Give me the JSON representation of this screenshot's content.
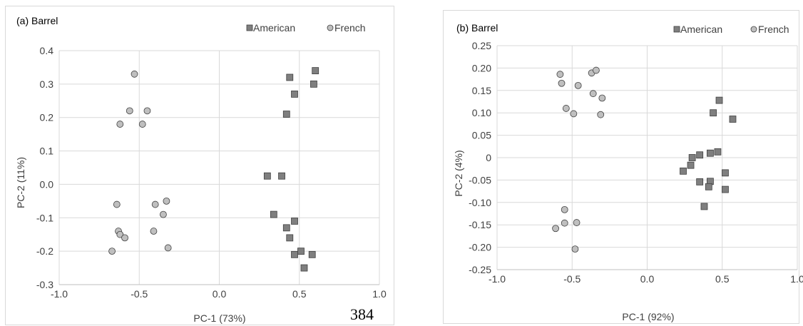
{
  "page_number": "384",
  "chart_data": [
    {
      "type": "scatter",
      "title": "(a) Barrel",
      "xlabel": "PC-1 (73%)",
      "ylabel": "PC-2 (11%)",
      "xlim": [
        -1.0,
        1.0
      ],
      "ylim": [
        -0.3,
        0.4
      ],
      "x_ticks": [
        "-1.0",
        "-0.5",
        "0.0",
        "0.5",
        "1.0"
      ],
      "y_ticks": [
        "0.4",
        "0.3",
        "0.2",
        "0.1",
        "0.0",
        "-0.1",
        "-0.2",
        "-0.3"
      ],
      "grid": true,
      "legend_position": "top-right",
      "series": [
        {
          "name": "American",
          "marker": "square",
          "color": "#7f7f7f",
          "points": [
            [
              0.44,
              0.32
            ],
            [
              0.6,
              0.34
            ],
            [
              0.59,
              0.3
            ],
            [
              0.47,
              0.27
            ],
            [
              0.42,
              0.21
            ],
            [
              0.3,
              0.025
            ],
            [
              0.39,
              0.025
            ],
            [
              0.34,
              -0.09
            ],
            [
              0.47,
              -0.11
            ],
            [
              0.42,
              -0.13
            ],
            [
              0.44,
              -0.16
            ],
            [
              0.51,
              -0.2
            ],
            [
              0.58,
              -0.21
            ],
            [
              0.47,
              -0.21
            ],
            [
              0.53,
              -0.25
            ]
          ]
        },
        {
          "name": "French",
          "marker": "circle",
          "color": "#bfbfbf",
          "points": [
            [
              -0.53,
              0.33
            ],
            [
              -0.56,
              0.22
            ],
            [
              -0.45,
              0.22
            ],
            [
              -0.48,
              0.18
            ],
            [
              -0.62,
              0.18
            ],
            [
              -0.64,
              -0.06
            ],
            [
              -0.4,
              -0.06
            ],
            [
              -0.33,
              -0.05
            ],
            [
              -0.35,
              -0.09
            ],
            [
              -0.41,
              -0.14
            ],
            [
              -0.63,
              -0.14
            ],
            [
              -0.62,
              -0.15
            ],
            [
              -0.59,
              -0.16
            ],
            [
              -0.67,
              -0.2
            ],
            [
              -0.32,
              -0.19
            ]
          ]
        }
      ]
    },
    {
      "type": "scatter",
      "title": "(b) Barrel",
      "xlabel": "PC-1 (92%)",
      "ylabel": "PC-2 (4%)",
      "xlim": [
        -1.0,
        1.0
      ],
      "ylim": [
        -0.25,
        0.25
      ],
      "x_ticks": [
        "-1.0",
        "-0.5",
        "0.0",
        "0.5",
        "1.0"
      ],
      "y_ticks": [
        "0.25",
        "0.20",
        "0.15",
        "0.10",
        "0.05",
        "0",
        "-0.05",
        "-0.10",
        "-0.15",
        "-0.20",
        "-0.25"
      ],
      "grid": true,
      "legend_position": "top-right",
      "series": [
        {
          "name": "American",
          "marker": "square",
          "color": "#7f7f7f",
          "points": [
            [
              0.48,
              0.128
            ],
            [
              0.57,
              0.086
            ],
            [
              0.44,
              0.1
            ],
            [
              0.47,
              0.013
            ],
            [
              0.42,
              0.01
            ],
            [
              0.35,
              0.006
            ],
            [
              0.3,
              0.0
            ],
            [
              0.29,
              -0.017
            ],
            [
              0.24,
              -0.03
            ],
            [
              0.52,
              -0.034
            ],
            [
              0.42,
              -0.053
            ],
            [
              0.35,
              -0.054
            ],
            [
              0.41,
              -0.065
            ],
            [
              0.52,
              -0.071
            ],
            [
              0.38,
              -0.109
            ]
          ]
        },
        {
          "name": "French",
          "marker": "circle",
          "color": "#bfbfbf",
          "points": [
            [
              -0.58,
              0.186
            ],
            [
              -0.37,
              0.189
            ],
            [
              -0.34,
              0.195
            ],
            [
              -0.57,
              0.166
            ],
            [
              -0.46,
              0.161
            ],
            [
              -0.36,
              0.143
            ],
            [
              -0.3,
              0.133
            ],
            [
              -0.54,
              0.11
            ],
            [
              -0.49,
              0.098
            ],
            [
              -0.31,
              0.096
            ],
            [
              -0.55,
              -0.116
            ],
            [
              -0.55,
              -0.146
            ],
            [
              -0.47,
              -0.145
            ],
            [
              -0.61,
              -0.158
            ],
            [
              -0.48,
              -0.204
            ]
          ]
        }
      ]
    }
  ]
}
